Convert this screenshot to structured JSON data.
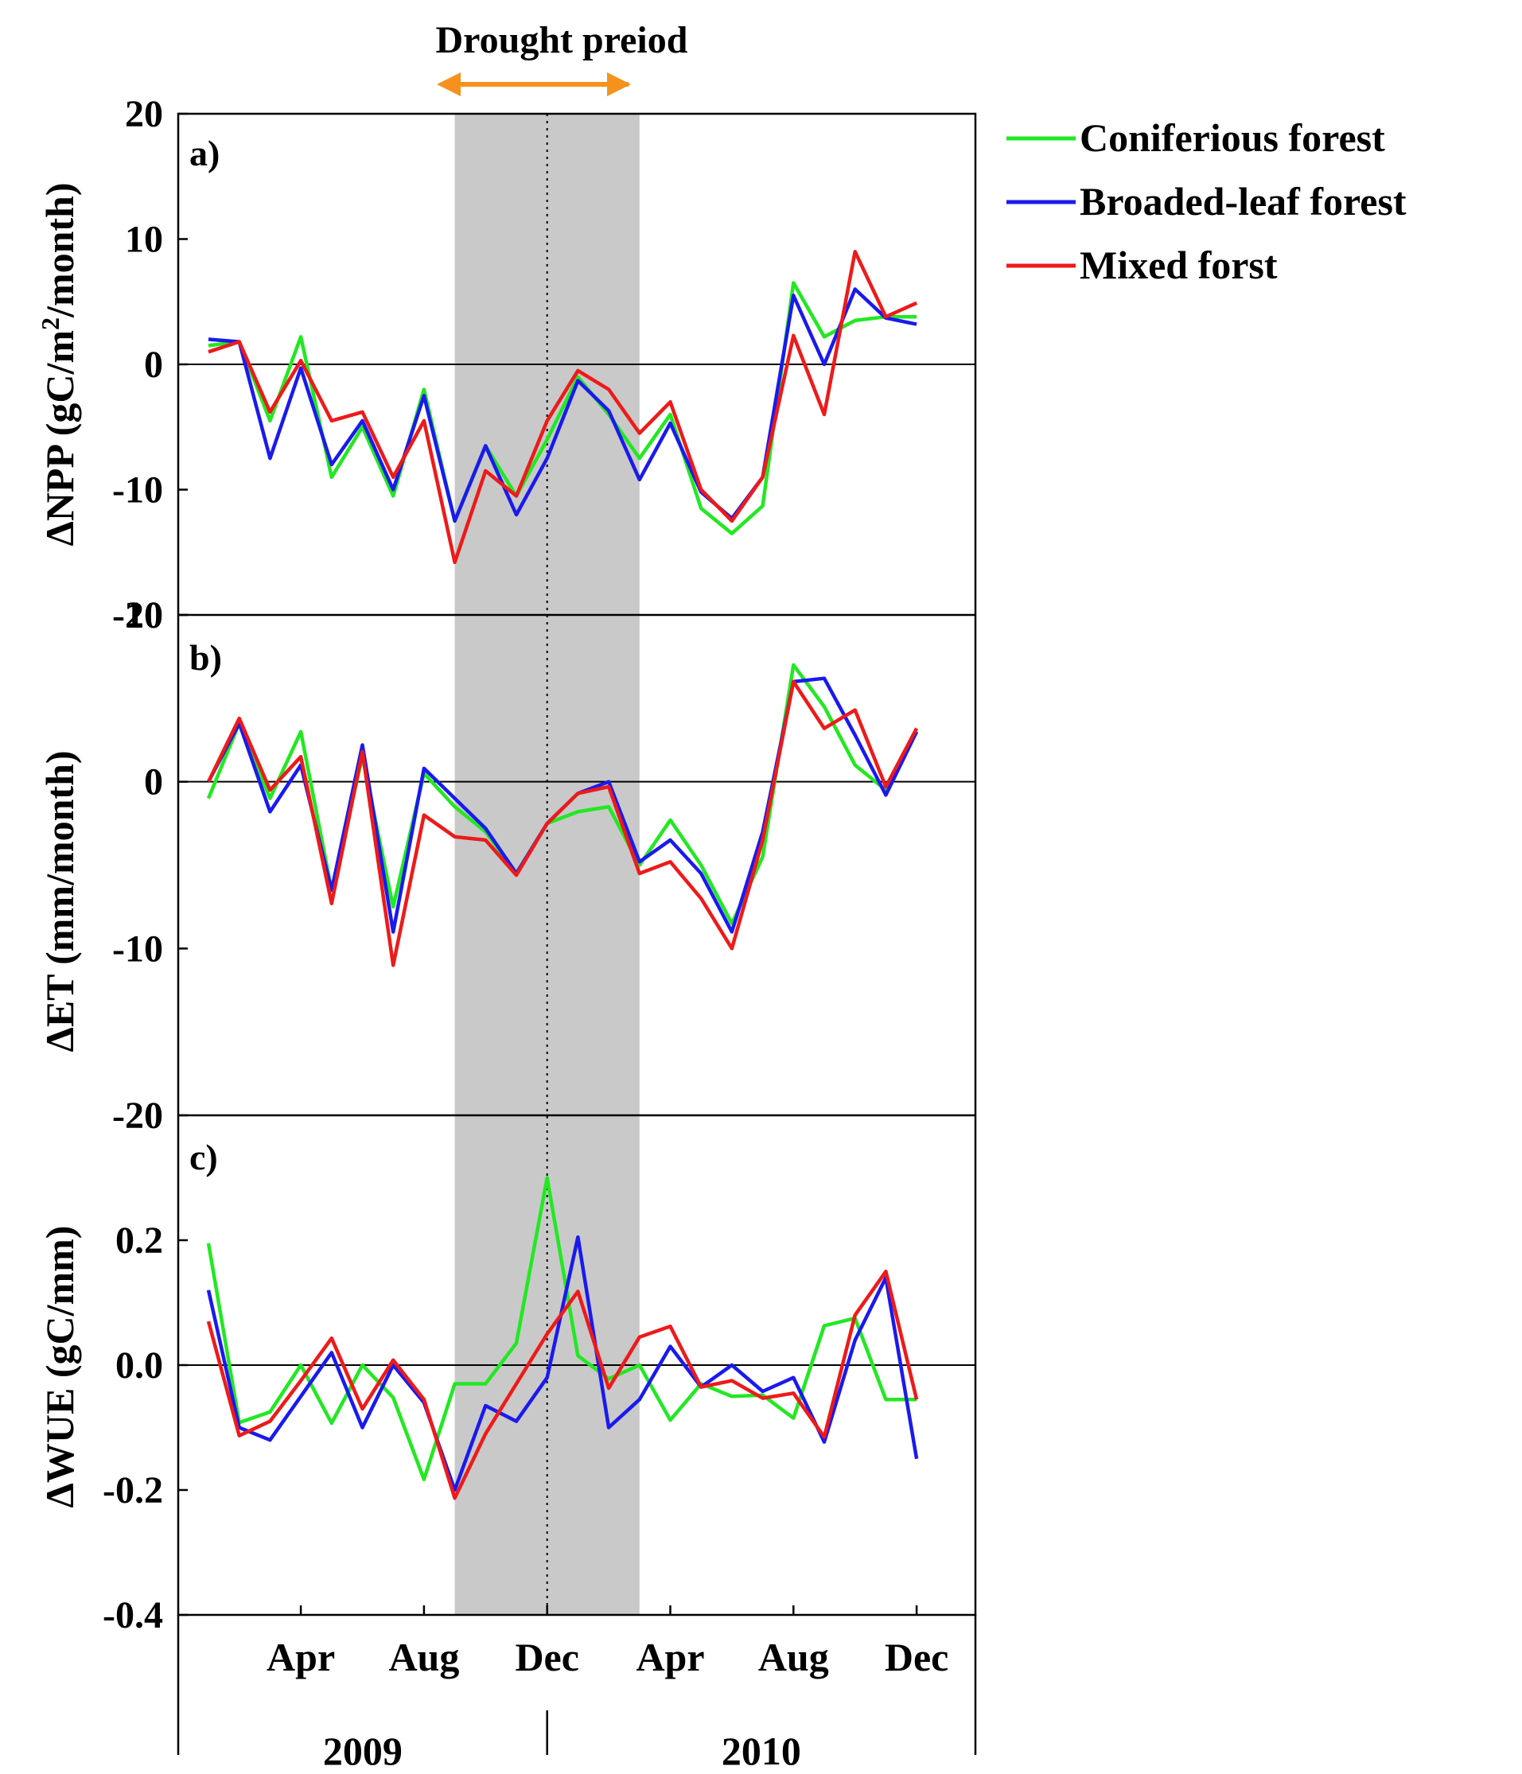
{
  "drought_label": "Drought preiod",
  "legend": [
    {
      "name": "Coniferious forest",
      "color": "#22e822"
    },
    {
      "name": "Broaded-leaf forest",
      "color": "#1a1aee"
    },
    {
      "name": "Mixed forst",
      "color": "#ee1a1a"
    }
  ],
  "colors": {
    "drought_shade": "#c9c9c9",
    "drought_arrow": "#f5921e"
  },
  "x_ticks": [
    "Apr",
    "Aug",
    "Dec",
    "Apr",
    "Aug",
    "Dec"
  ],
  "x_tick_months": [
    4,
    8,
    12,
    16,
    20,
    24
  ],
  "years": [
    "2009",
    "2010"
  ],
  "drought_months": [
    9,
    15
  ],
  "chart_data": [
    {
      "type": "line",
      "panel_label": "a)",
      "title": "",
      "xlabel": "",
      "ylabel": "ΔNPP (gC/m²/month)",
      "ylabel_parts": {
        "pre": "ΔNPP (gC/m",
        "sup": "2",
        "post": "/month)"
      },
      "ylim": [
        -20,
        20
      ],
      "yticks": [
        -20,
        -10,
        0,
        10,
        20
      ],
      "ytick_labels": [
        "-20",
        "-10",
        "0",
        "10",
        "20"
      ],
      "x": [
        1,
        2,
        3,
        4,
        5,
        6,
        7,
        8,
        9,
        10,
        11,
        12,
        13,
        14,
        15,
        16,
        17,
        18,
        19,
        20,
        21,
        22,
        23,
        24
      ],
      "series": [
        {
          "name": "Coniferious forest",
          "values": [
            1.5,
            1.8,
            -4.5,
            2.2,
            -9,
            -5,
            -10.5,
            -2,
            -12.5,
            -6.5,
            -10.5,
            -6,
            -1,
            -4,
            -7.5,
            -4,
            -11.5,
            -13.5,
            -11.3,
            6.5,
            2.2,
            3.5,
            3.8,
            3.8
          ]
        },
        {
          "name": "Broaded-leaf forest",
          "values": [
            2,
            1.8,
            -7.5,
            -0.3,
            -8,
            -4.5,
            -10,
            -2.5,
            -12.5,
            -6.5,
            -12,
            -7.5,
            -1.3,
            -3.7,
            -9.2,
            -4.7,
            -10.2,
            -12.3,
            -9,
            5.5,
            0,
            6,
            3.7,
            3.2
          ]
        },
        {
          "name": "Mixed forst",
          "values": [
            1,
            1.8,
            -3.8,
            0.3,
            -4.5,
            -3.8,
            -9,
            -4.5,
            -15.8,
            -8.5,
            -10.5,
            -4.5,
            -0.5,
            -2,
            -5.5,
            -3,
            -10,
            -12.5,
            -9,
            2.3,
            -4,
            9,
            3.8,
            4.9
          ]
        }
      ]
    },
    {
      "type": "line",
      "panel_label": "b)",
      "title": "",
      "xlabel": "",
      "ylabel": "ΔET (mm/month)",
      "ylim": [
        -20,
        10
      ],
      "yticks": [
        -20,
        -10,
        0,
        10
      ],
      "ytick_labels": [
        "-20",
        "-10",
        "0",
        "10"
      ],
      "x": [
        1,
        2,
        3,
        4,
        5,
        6,
        7,
        8,
        9,
        10,
        11,
        12,
        13,
        14,
        15,
        16,
        17,
        18,
        19,
        20,
        21,
        22,
        23,
        24
      ],
      "series": [
        {
          "name": "Coniferious forest",
          "values": [
            -1,
            3.5,
            -1,
            3,
            -6.5,
            1.5,
            -7.5,
            0.5,
            -1.5,
            -3,
            -5.5,
            -2.5,
            -1.8,
            -1.5,
            -5,
            -2.3,
            -5,
            -8.5,
            -4.5,
            7,
            4.5,
            1,
            -0.5,
            3
          ]
        },
        {
          "name": "Broaded-leaf forest",
          "values": [
            0,
            3.5,
            -1.8,
            1,
            -6.5,
            2.2,
            -9,
            0.8,
            -1,
            -2.8,
            -5.5,
            -2.5,
            -0.7,
            0,
            -4.8,
            -3.5,
            -5.5,
            -9,
            -3,
            6,
            6.2,
            2.8,
            -0.8,
            3
          ]
        },
        {
          "name": "Mixed forst",
          "values": [
            0,
            3.8,
            -0.5,
            1.5,
            -7.3,
            1.8,
            -11,
            -2,
            -3.3,
            -3.5,
            -5.6,
            -2.5,
            -0.7,
            -0.3,
            -5.5,
            -4.8,
            -7,
            -10,
            -3.5,
            6,
            3.2,
            4.3,
            -0.3,
            3.2
          ]
        }
      ]
    },
    {
      "type": "line",
      "panel_label": "c)",
      "title": "",
      "xlabel": "",
      "ylabel": "ΔWUE (gC/mm)",
      "ylim": [
        -0.4,
        0.4
      ],
      "yticks": [
        -0.4,
        -0.2,
        0.0,
        0.2
      ],
      "ytick_labels": [
        "-0.4",
        "-0.2",
        "0.0",
        "0.2"
      ],
      "x": [
        1,
        2,
        3,
        4,
        5,
        6,
        7,
        8,
        9,
        10,
        11,
        12,
        13,
        14,
        15,
        16,
        17,
        18,
        19,
        20,
        21,
        22,
        23,
        24
      ],
      "series": [
        {
          "name": "Coniferious forest",
          "values": [
            0.195,
            -0.092,
            -0.075,
            0.0,
            -0.093,
            0.0,
            -0.052,
            -0.183,
            -0.03,
            -0.03,
            0.035,
            0.3,
            0.015,
            -0.022,
            0.0,
            -0.088,
            -0.03,
            -0.05,
            -0.048,
            -0.085,
            0.063,
            0.075,
            -0.055,
            -0.055
          ]
        },
        {
          "name": "Broaded-leaf forest",
          "values": [
            0.12,
            -0.1,
            -0.12,
            -0.05,
            0.02,
            -0.1,
            0.0,
            -0.06,
            -0.2,
            -0.065,
            -0.09,
            -0.02,
            0.205,
            -0.1,
            -0.055,
            0.03,
            -0.035,
            0.0,
            -0.042,
            -0.02,
            -0.123,
            0.04,
            0.14,
            -0.15
          ]
        },
        {
          "name": "Mixed forst",
          "values": [
            0.07,
            -0.113,
            -0.09,
            -0.025,
            0.043,
            -0.07,
            0.008,
            -0.055,
            -0.213,
            -0.11,
            -0.03,
            0.05,
            0.118,
            -0.037,
            0.045,
            0.062,
            -0.035,
            -0.025,
            -0.053,
            -0.045,
            -0.115,
            0.08,
            0.15,
            -0.055
          ]
        }
      ]
    }
  ]
}
